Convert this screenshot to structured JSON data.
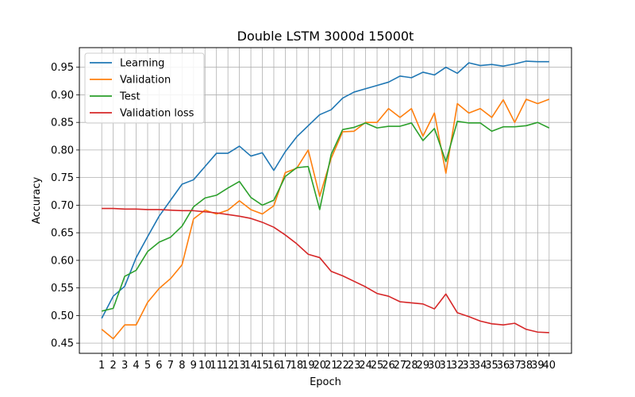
{
  "chart_data": {
    "type": "line",
    "title": "Double LSTM 3000d 15000t",
    "xlabel": "Epoch",
    "ylabel": "Accuracy",
    "x": [
      1,
      2,
      3,
      4,
      5,
      6,
      7,
      8,
      9,
      10,
      11,
      12,
      13,
      14,
      15,
      16,
      17,
      18,
      19,
      20,
      21,
      22,
      23,
      24,
      25,
      26,
      27,
      28,
      29,
      30,
      31,
      32,
      33,
      34,
      35,
      36,
      37,
      38,
      39,
      40
    ],
    "xlim": [
      -0.95,
      41.95
    ],
    "ylim": [
      0.4315,
      0.9855
    ],
    "yticks": [
      0.45,
      0.5,
      0.55,
      0.6,
      0.65,
      0.7,
      0.75,
      0.8,
      0.85,
      0.9,
      0.95
    ],
    "ytick_labels": [
      "0.45",
      "0.50",
      "0.55",
      "0.60",
      "0.65",
      "0.70",
      "0.75",
      "0.80",
      "0.85",
      "0.90",
      "0.95"
    ],
    "grid": true,
    "legend_position": "upper-left",
    "series": [
      {
        "name": "Learning",
        "color": "#1f77b4",
        "values": [
          0.495,
          0.535,
          0.553,
          0.605,
          0.643,
          0.68,
          0.709,
          0.738,
          0.746,
          0.77,
          0.794,
          0.794,
          0.807,
          0.789,
          0.795,
          0.763,
          0.797,
          0.824,
          0.844,
          0.864,
          0.873,
          0.894,
          0.905,
          0.911,
          0.917,
          0.923,
          0.934,
          0.931,
          0.941,
          0.936,
          0.95,
          0.939,
          0.958,
          0.953,
          0.955,
          0.952,
          0.956,
          0.961,
          0.96,
          0.96
        ]
      },
      {
        "name": "Validation",
        "color": "#ff7f0e",
        "values": [
          0.475,
          0.458,
          0.483,
          0.483,
          0.524,
          0.549,
          0.567,
          0.592,
          0.675,
          0.691,
          0.684,
          0.691,
          0.708,
          0.692,
          0.684,
          0.699,
          0.759,
          0.767,
          0.8,
          0.716,
          0.785,
          0.833,
          0.834,
          0.85,
          0.85,
          0.875,
          0.859,
          0.875,
          0.825,
          0.867,
          0.758,
          0.884,
          0.867,
          0.875,
          0.859,
          0.891,
          0.85,
          0.892,
          0.884,
          0.892
        ]
      },
      {
        "name": "Test",
        "color": "#2ca02c",
        "values": [
          0.508,
          0.513,
          0.571,
          0.582,
          0.616,
          0.633,
          0.642,
          0.662,
          0.697,
          0.713,
          0.718,
          0.731,
          0.743,
          0.714,
          0.7,
          0.709,
          0.752,
          0.768,
          0.77,
          0.692,
          0.792,
          0.837,
          0.841,
          0.849,
          0.84,
          0.843,
          0.843,
          0.849,
          0.817,
          0.839,
          0.779,
          0.852,
          0.849,
          0.849,
          0.834,
          0.842,
          0.842,
          0.844,
          0.85,
          0.84
        ]
      },
      {
        "name": "Validation loss",
        "color": "#d62728",
        "values": [
          0.694,
          0.694,
          0.693,
          0.693,
          0.692,
          0.692,
          0.691,
          0.69,
          0.69,
          0.688,
          0.686,
          0.683,
          0.68,
          0.676,
          0.669,
          0.66,
          0.646,
          0.63,
          0.611,
          0.605,
          0.58,
          0.572,
          0.562,
          0.552,
          0.54,
          0.535,
          0.525,
          0.523,
          0.521,
          0.512,
          0.539,
          0.505,
          0.498,
          0.49,
          0.485,
          0.483,
          0.486,
          0.475,
          0.47,
          0.469
        ]
      }
    ]
  }
}
